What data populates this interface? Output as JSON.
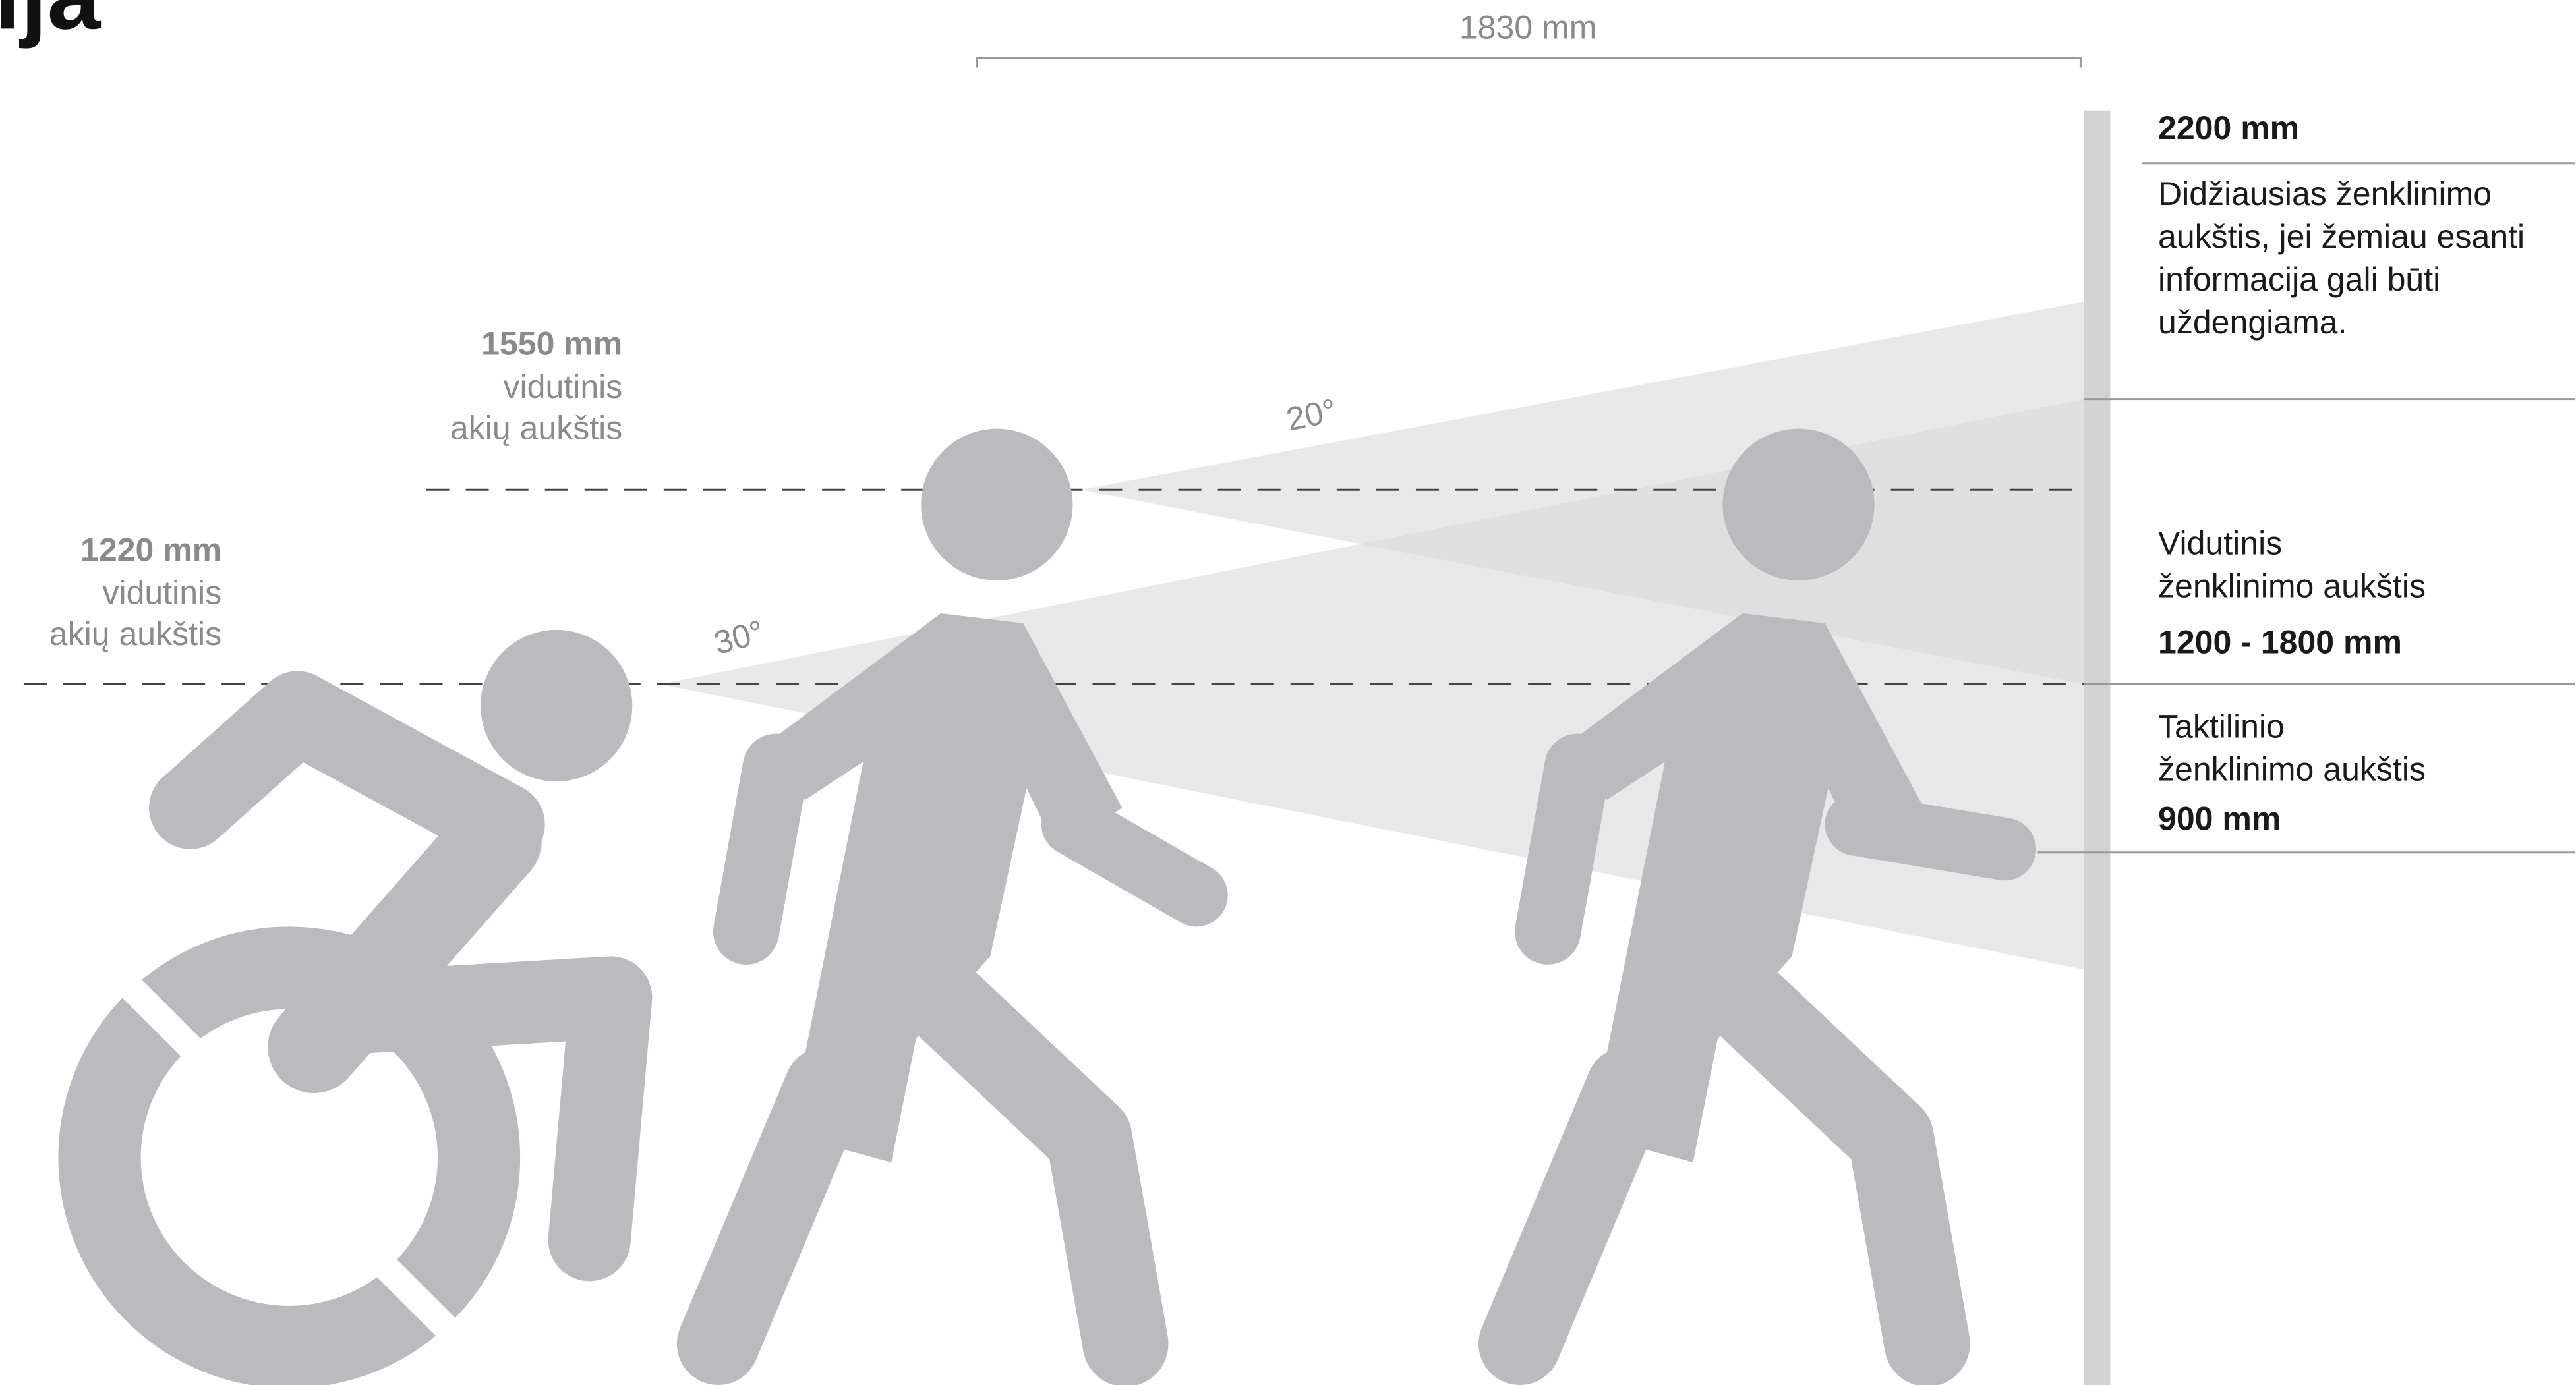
{
  "title": "ija",
  "dimension": "1830 mm",
  "eye_levels": [
    {
      "height": "1550 mm",
      "lines": [
        "vidutinis",
        "akių aukštis"
      ]
    },
    {
      "height": "1220 mm",
      "lines": [
        "vidutinis",
        "akių aukštis"
      ]
    }
  ],
  "angles": [
    "20°",
    "30°"
  ],
  "sign_heights": [
    {
      "value": "2200 mm",
      "lines": [
        "Didžiausias ženklinimo",
        "aukštis, jei žemiau esanti",
        "informacija gali būti",
        "uždengiama."
      ]
    },
    {
      "value": "1200 - 1800 mm",
      "lines": [
        "Vidutinis",
        "ženklinimo aukštis"
      ]
    },
    {
      "value": "900 mm",
      "lines": [
        "Taktilinio",
        "ženklinimo aukštis"
      ]
    }
  ]
}
